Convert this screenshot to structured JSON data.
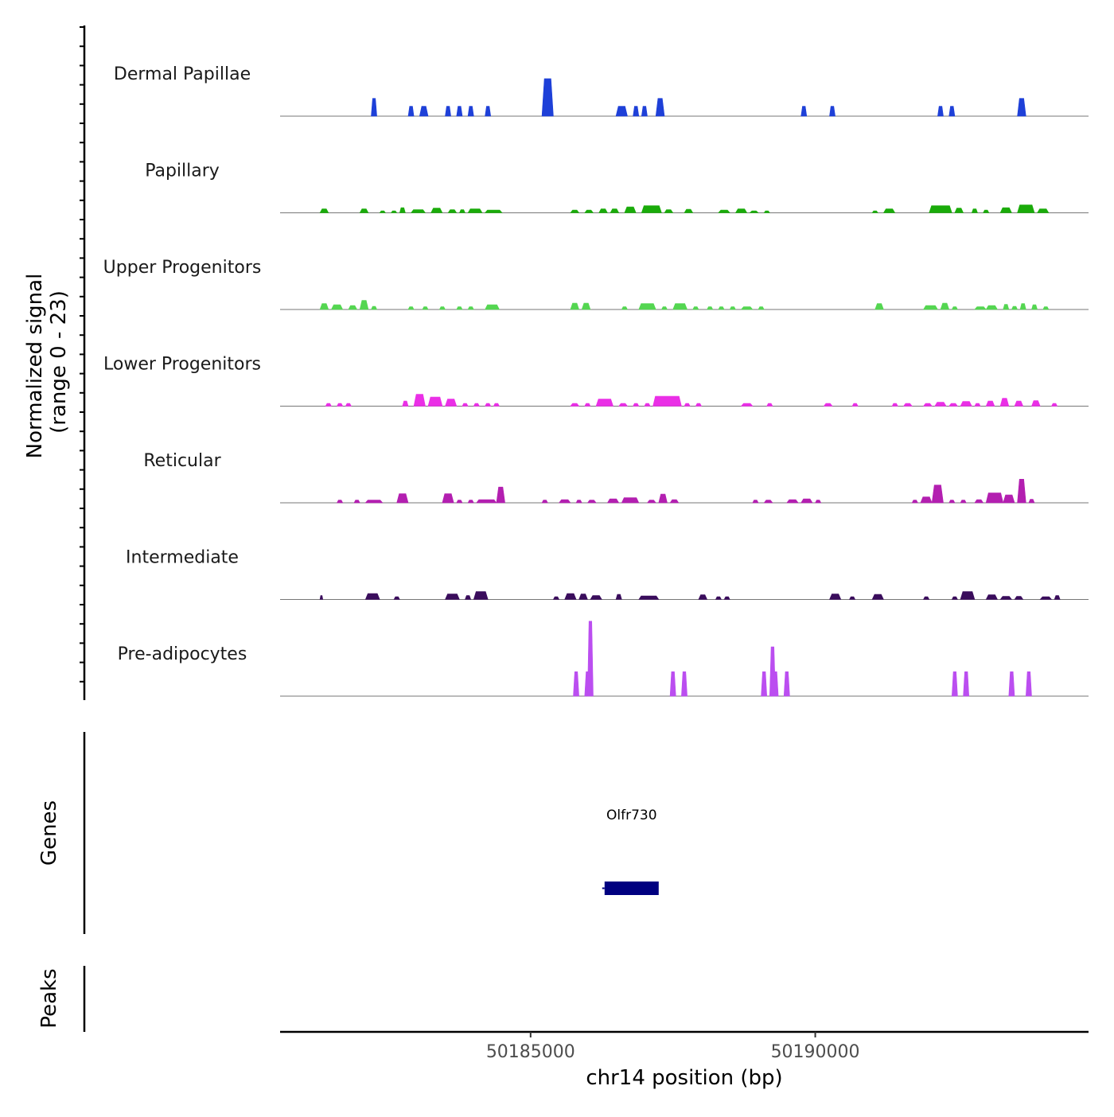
{
  "chart_data": {
    "type": "area",
    "title": "",
    "ylabel_line1": "Normalized signal",
    "ylabel_line2": "(range 0 - 23)",
    "ylim": [
      0,
      23
    ],
    "xlabel": "chr14 position (bp)",
    "xlim": [
      50180600,
      50194800
    ],
    "x_ticks": [
      {
        "value": 50185000,
        "label": "50185000"
      },
      {
        "value": 50190000,
        "label": "50190000"
      }
    ],
    "series": [
      {
        "name": "Dermal Papillae",
        "color": "#1e40d8",
        "peaks": [
          [
            50182200,
            50182300,
            4.5
          ],
          [
            50182850,
            50182950,
            2.5
          ],
          [
            50183050,
            50183200,
            2.5
          ],
          [
            50183500,
            50183600,
            2.5
          ],
          [
            50183700,
            50183800,
            2.5
          ],
          [
            50183900,
            50184000,
            2.5
          ],
          [
            50184200,
            50184300,
            2.5
          ],
          [
            50185200,
            50185400,
            9.5
          ],
          [
            50186500,
            50186700,
            2.5
          ],
          [
            50186800,
            50186900,
            2.5
          ],
          [
            50186950,
            50187050,
            2.5
          ],
          [
            50187200,
            50187350,
            4.5
          ],
          [
            50189750,
            50189850,
            2.5
          ],
          [
            50190250,
            50190350,
            2.5
          ],
          [
            50192150,
            50192250,
            2.5
          ],
          [
            50192350,
            50192450,
            2.5
          ],
          [
            50193550,
            50193700,
            4.5
          ]
        ]
      },
      {
        "name": "Papillary",
        "color": "#1aab0a",
        "peaks": [
          [
            50181300,
            50181450,
            1.0
          ],
          [
            50182000,
            50182150,
            1.0
          ],
          [
            50182350,
            50182450,
            0.5
          ],
          [
            50182550,
            50182650,
            0.5
          ],
          [
            50182700,
            50182800,
            1.3
          ],
          [
            50182900,
            50183150,
            0.8
          ],
          [
            50183250,
            50183450,
            1.2
          ],
          [
            50183550,
            50183700,
            0.8
          ],
          [
            50183750,
            50183850,
            0.8
          ],
          [
            50183900,
            50184150,
            1.0
          ],
          [
            50184200,
            50184500,
            0.7
          ],
          [
            50185700,
            50185850,
            0.7
          ],
          [
            50185950,
            50186100,
            0.7
          ],
          [
            50186200,
            50186350,
            1.0
          ],
          [
            50186400,
            50186550,
            1.0
          ],
          [
            50186650,
            50186850,
            1.5
          ],
          [
            50186950,
            50187300,
            1.8
          ],
          [
            50187350,
            50187500,
            0.8
          ],
          [
            50187700,
            50187850,
            0.9
          ],
          [
            50188300,
            50188500,
            0.7
          ],
          [
            50188600,
            50188800,
            1.0
          ],
          [
            50188850,
            50189000,
            0.5
          ],
          [
            50189100,
            50189200,
            0.5
          ],
          [
            50191000,
            50191100,
            0.5
          ],
          [
            50191200,
            50191400,
            1.0
          ],
          [
            50192000,
            50192400,
            1.8
          ],
          [
            50192450,
            50192600,
            1.2
          ],
          [
            50192750,
            50192850,
            1.0
          ],
          [
            50192950,
            50193050,
            0.7
          ],
          [
            50193250,
            50193450,
            1.3
          ],
          [
            50193550,
            50193850,
            2.0
          ],
          [
            50193900,
            50194100,
            1.0
          ]
        ]
      },
      {
        "name": "Upper Progenitors",
        "color": "#54d651",
        "peaks": [
          [
            50181300,
            50181450,
            1.5
          ],
          [
            50181500,
            50181700,
            1.2
          ],
          [
            50181800,
            50181950,
            1.0
          ],
          [
            50182000,
            50182150,
            2.3
          ],
          [
            50182200,
            50182300,
            0.8
          ],
          [
            50182850,
            50182950,
            0.7
          ],
          [
            50183100,
            50183200,
            0.7
          ],
          [
            50183400,
            50183500,
            0.7
          ],
          [
            50183700,
            50183800,
            0.7
          ],
          [
            50183900,
            50184000,
            0.7
          ],
          [
            50184200,
            50184450,
            1.2
          ],
          [
            50185700,
            50185850,
            1.6
          ],
          [
            50185900,
            50186050,
            1.6
          ],
          [
            50186600,
            50186700,
            0.7
          ],
          [
            50186900,
            50187200,
            1.5
          ],
          [
            50187300,
            50187400,
            0.7
          ],
          [
            50187500,
            50187750,
            1.5
          ],
          [
            50187850,
            50187950,
            0.7
          ],
          [
            50188100,
            50188200,
            0.7
          ],
          [
            50188300,
            50188400,
            0.7
          ],
          [
            50188500,
            50188600,
            0.7
          ],
          [
            50188700,
            50188900,
            0.7
          ],
          [
            50189000,
            50189100,
            0.7
          ],
          [
            50191050,
            50191200,
            1.5
          ],
          [
            50191900,
            50192150,
            1.0
          ],
          [
            50192200,
            50192350,
            1.6
          ],
          [
            50192400,
            50192500,
            0.7
          ],
          [
            50192800,
            50193000,
            0.7
          ],
          [
            50193000,
            50193200,
            1.0
          ],
          [
            50193300,
            50193400,
            1.3
          ],
          [
            50193450,
            50193550,
            0.8
          ],
          [
            50193600,
            50193700,
            1.5
          ],
          [
            50193800,
            50193900,
            1.2
          ],
          [
            50194000,
            50194100,
            0.7
          ]
        ]
      },
      {
        "name": "Lower Progenitors",
        "color": "#ea2fe6",
        "peaks": [
          [
            50181400,
            50181500,
            0.7
          ],
          [
            50181600,
            50181700,
            0.7
          ],
          [
            50181750,
            50181850,
            0.7
          ],
          [
            50182750,
            50182850,
            1.3
          ],
          [
            50182950,
            50183150,
            3.0
          ],
          [
            50183200,
            50183450,
            2.3
          ],
          [
            50183500,
            50183700,
            1.8
          ],
          [
            50183800,
            50183900,
            0.7
          ],
          [
            50184000,
            50184100,
            0.7
          ],
          [
            50184200,
            50184300,
            0.7
          ],
          [
            50184350,
            50184450,
            0.7
          ],
          [
            50185700,
            50185850,
            0.7
          ],
          [
            50185950,
            50186050,
            0.7
          ],
          [
            50186150,
            50186450,
            1.8
          ],
          [
            50186550,
            50186700,
            0.7
          ],
          [
            50186800,
            50186900,
            0.7
          ],
          [
            50187000,
            50187100,
            0.7
          ],
          [
            50187150,
            50187650,
            2.5
          ],
          [
            50187700,
            50187800,
            0.7
          ],
          [
            50187900,
            50188000,
            0.7
          ],
          [
            50188700,
            50188900,
            0.7
          ],
          [
            50189150,
            50189250,
            0.7
          ],
          [
            50190150,
            50190300,
            0.7
          ],
          [
            50190650,
            50190750,
            0.7
          ],
          [
            50191350,
            50191450,
            0.7
          ],
          [
            50191550,
            50191700,
            0.7
          ],
          [
            50191900,
            50192050,
            0.7
          ],
          [
            50192100,
            50192300,
            1.0
          ],
          [
            50192350,
            50192500,
            0.7
          ],
          [
            50192550,
            50192750,
            1.2
          ],
          [
            50192800,
            50192900,
            0.7
          ],
          [
            50193000,
            50193150,
            1.3
          ],
          [
            50193250,
            50193400,
            2.0
          ],
          [
            50193500,
            50193650,
            1.3
          ],
          [
            50193800,
            50193950,
            1.4
          ],
          [
            50194150,
            50194250,
            0.7
          ]
        ]
      },
      {
        "name": "Reticular",
        "color": "#b31fb0",
        "peaks": [
          [
            50181600,
            50181700,
            0.7
          ],
          [
            50181900,
            50182000,
            0.7
          ],
          [
            50182100,
            50182400,
            0.7
          ],
          [
            50182650,
            50182850,
            2.3
          ],
          [
            50183450,
            50183650,
            2.3
          ],
          [
            50183700,
            50183800,
            0.7
          ],
          [
            50183900,
            50184000,
            0.7
          ],
          [
            50184050,
            50184400,
            0.8
          ],
          [
            50184400,
            50184550,
            4.0
          ],
          [
            50185200,
            50185300,
            0.7
          ],
          [
            50185500,
            50185700,
            0.8
          ],
          [
            50185800,
            50185900,
            0.7
          ],
          [
            50186000,
            50186150,
            0.7
          ],
          [
            50186350,
            50186550,
            1.0
          ],
          [
            50186600,
            50186900,
            1.3
          ],
          [
            50187050,
            50187200,
            0.7
          ],
          [
            50187250,
            50187400,
            2.2
          ],
          [
            50187450,
            50187600,
            0.8
          ],
          [
            50188900,
            50189000,
            0.7
          ],
          [
            50189100,
            50189250,
            0.7
          ],
          [
            50189500,
            50189700,
            0.8
          ],
          [
            50189750,
            50189950,
            1.0
          ],
          [
            50190000,
            50190100,
            0.7
          ],
          [
            50191700,
            50191800,
            0.7
          ],
          [
            50191850,
            50192050,
            1.5
          ],
          [
            50192050,
            50192250,
            4.5
          ],
          [
            50192350,
            50192450,
            0.7
          ],
          [
            50192550,
            50192650,
            0.7
          ],
          [
            50192800,
            50192950,
            0.8
          ],
          [
            50193000,
            50193300,
            2.5
          ],
          [
            50193300,
            50193500,
            2.0
          ],
          [
            50193550,
            50193700,
            6.0
          ],
          [
            50193750,
            50193850,
            0.9
          ]
        ]
      },
      {
        "name": "Intermediate",
        "color": "#3a0d5c",
        "peaks": [
          [
            50181300,
            50181350,
            1.0
          ],
          [
            50182100,
            50182350,
            1.5
          ],
          [
            50182600,
            50182700,
            0.7
          ],
          [
            50183500,
            50183750,
            1.4
          ],
          [
            50183850,
            50183950,
            1.0
          ],
          [
            50184000,
            50184250,
            2.0
          ],
          [
            50185400,
            50185500,
            0.7
          ],
          [
            50185600,
            50185800,
            1.5
          ],
          [
            50185850,
            50186000,
            1.4
          ],
          [
            50186050,
            50186250,
            1.0
          ],
          [
            50186500,
            50186600,
            1.3
          ],
          [
            50186900,
            50187250,
            0.9
          ],
          [
            50187950,
            50188100,
            1.2
          ],
          [
            50188250,
            50188350,
            0.7
          ],
          [
            50188400,
            50188500,
            0.7
          ],
          [
            50190250,
            50190450,
            1.4
          ],
          [
            50190600,
            50190700,
            0.7
          ],
          [
            50191000,
            50191200,
            1.3
          ],
          [
            50191900,
            50192000,
            0.7
          ],
          [
            50192400,
            50192500,
            0.7
          ],
          [
            50192550,
            50192800,
            2.0
          ],
          [
            50193000,
            50193200,
            1.2
          ],
          [
            50193250,
            50193450,
            0.8
          ],
          [
            50193500,
            50193650,
            0.8
          ],
          [
            50193950,
            50194150,
            0.7
          ],
          [
            50194200,
            50194300,
            1.0
          ]
        ]
      },
      {
        "name": "Pre-adipocytes",
        "color": "#bb4ef0",
        "peaks": [
          [
            50185750,
            50185850,
            6.2
          ],
          [
            50185950,
            50186050,
            6.2
          ],
          [
            50186000,
            50186100,
            19.0
          ],
          [
            50187450,
            50187550,
            6.2
          ],
          [
            50187650,
            50187750,
            6.2
          ],
          [
            50189050,
            50189150,
            6.2
          ],
          [
            50189200,
            50189300,
            12.5
          ],
          [
            50189250,
            50189350,
            6.2
          ],
          [
            50189450,
            50189550,
            6.2
          ],
          [
            50192400,
            50192500,
            6.2
          ],
          [
            50192600,
            50192700,
            6.2
          ],
          [
            50193400,
            50193500,
            6.2
          ],
          [
            50193700,
            50193800,
            6.2
          ]
        ]
      }
    ],
    "genes_label": "Genes",
    "genes": [
      {
        "name": "Olfr730",
        "start": 50186300,
        "end": 50187250,
        "color": "#000080"
      }
    ],
    "peaks_label": "Peaks"
  }
}
